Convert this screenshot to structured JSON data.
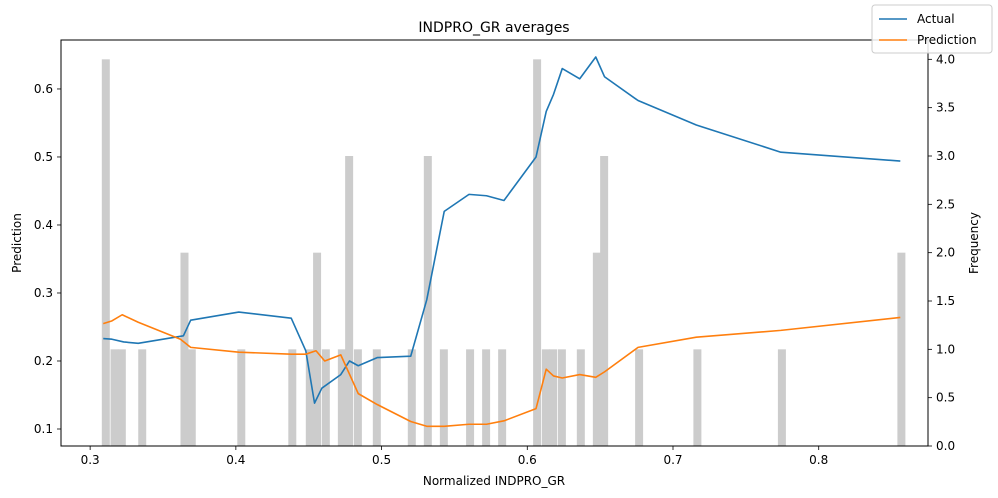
{
  "chart_data": {
    "type": "line",
    "title": "INDPRO_GR averages",
    "xlabel": "Normalized INDPRO_GR",
    "ylabel": "Prediction",
    "y2label": "Frequency",
    "xlim": [
      0.28,
      0.875
    ],
    "ylim": [
      0.075,
      0.672
    ],
    "y2lim": [
      0,
      4.2
    ],
    "xticks": [
      "0.3",
      "0.4",
      "0.5",
      "0.6",
      "0.7",
      "0.8"
    ],
    "yticks": [
      "0.1",
      "0.2",
      "0.3",
      "0.4",
      "0.5",
      "0.6"
    ],
    "y2ticks": [
      "0.0",
      "0.5",
      "1.0",
      "1.5",
      "2.0",
      "2.5",
      "3.0",
      "3.5",
      "4.0"
    ],
    "legend_position": "top-right",
    "series": [
      {
        "name": "Actual",
        "color": "#1f77b4",
        "x": [
          0.309,
          0.315,
          0.323,
          0.333,
          0.364,
          0.369,
          0.402,
          0.438,
          0.448,
          0.454,
          0.459,
          0.472,
          0.478,
          0.484,
          0.497,
          0.52,
          0.531,
          0.543,
          0.56,
          0.572,
          0.584,
          0.606,
          0.613,
          0.618,
          0.624,
          0.636,
          0.647,
          0.653,
          0.676,
          0.716,
          0.774,
          0.856
        ],
        "values": [
          0.233,
          0.232,
          0.228,
          0.226,
          0.237,
          0.26,
          0.272,
          0.263,
          0.215,
          0.138,
          0.16,
          0.18,
          0.2,
          0.193,
          0.205,
          0.207,
          0.29,
          0.42,
          0.445,
          0.443,
          0.436,
          0.5,
          0.567,
          0.592,
          0.63,
          0.615,
          0.647,
          0.618,
          0.583,
          0.547,
          0.507,
          0.494
        ]
      },
      {
        "name": "Prediction",
        "color": "#ff7f0e",
        "x": [
          0.309,
          0.315,
          0.322,
          0.333,
          0.362,
          0.369,
          0.402,
          0.438,
          0.448,
          0.455,
          0.461,
          0.472,
          0.484,
          0.497,
          0.52,
          0.531,
          0.543,
          0.56,
          0.572,
          0.584,
          0.606,
          0.613,
          0.618,
          0.624,
          0.636,
          0.647,
          0.653,
          0.676,
          0.716,
          0.774,
          0.856
        ],
        "values": [
          0.255,
          0.259,
          0.268,
          0.257,
          0.232,
          0.22,
          0.213,
          0.21,
          0.21,
          0.215,
          0.2,
          0.209,
          0.152,
          0.136,
          0.111,
          0.104,
          0.104,
          0.107,
          0.107,
          0.112,
          0.13,
          0.188,
          0.178,
          0.175,
          0.18,
          0.176,
          0.184,
          0.22,
          0.235,
          0.245,
          0.264
        ]
      }
    ],
    "histogram": {
      "color": "#cccccc",
      "axis": "y2",
      "bin_width": 0.00548,
      "bins": [
        {
          "x": 0.308,
          "count": 4
        },
        {
          "x": 0.314,
          "count": 1
        },
        {
          "x": 0.319,
          "count": 1
        },
        {
          "x": 0.333,
          "count": 1
        },
        {
          "x": 0.362,
          "count": 2
        },
        {
          "x": 0.367,
          "count": 1
        },
        {
          "x": 0.401,
          "count": 1
        },
        {
          "x": 0.436,
          "count": 1
        },
        {
          "x": 0.448,
          "count": 1
        },
        {
          "x": 0.453,
          "count": 2
        },
        {
          "x": 0.459,
          "count": 1
        },
        {
          "x": 0.47,
          "count": 1
        },
        {
          "x": 0.475,
          "count": 3
        },
        {
          "x": 0.481,
          "count": 1
        },
        {
          "x": 0.494,
          "count": 1
        },
        {
          "x": 0.518,
          "count": 1
        },
        {
          "x": 0.529,
          "count": 3
        },
        {
          "x": 0.54,
          "count": 1
        },
        {
          "x": 0.558,
          "count": 1
        },
        {
          "x": 0.569,
          "count": 1
        },
        {
          "x": 0.58,
          "count": 1
        },
        {
          "x": 0.604,
          "count": 4
        },
        {
          "x": 0.61,
          "count": 1
        },
        {
          "x": 0.615,
          "count": 1
        },
        {
          "x": 0.621,
          "count": 1
        },
        {
          "x": 0.634,
          "count": 1
        },
        {
          "x": 0.645,
          "count": 2
        },
        {
          "x": 0.65,
          "count": 3
        },
        {
          "x": 0.674,
          "count": 1
        },
        {
          "x": 0.714,
          "count": 1
        },
        {
          "x": 0.772,
          "count": 1
        },
        {
          "x": 0.854,
          "count": 2
        }
      ]
    }
  }
}
